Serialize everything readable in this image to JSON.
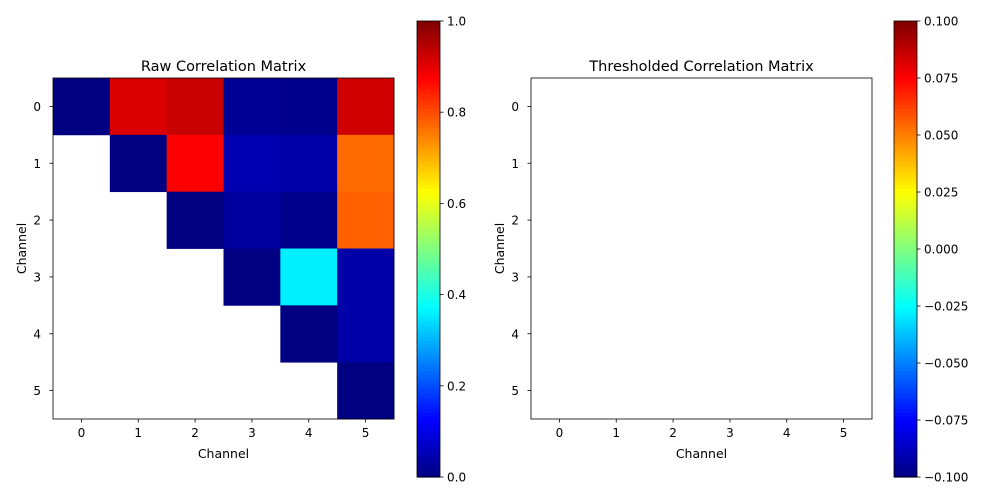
{
  "chart_data": [
    {
      "type": "heatmap",
      "title": "Raw Correlation Matrix",
      "xlabel": "Channel",
      "ylabel": "Channel",
      "x_categories": [
        "0",
        "1",
        "2",
        "3",
        "4",
        "5"
      ],
      "y_categories": [
        "0",
        "1",
        "2",
        "3",
        "4",
        "5"
      ],
      "colormap": "jet",
      "clim": [
        0,
        1
      ],
      "colorbar_ticks": [
        "0.0",
        "0.2",
        "0.4",
        "0.6",
        "0.8",
        "1.0"
      ],
      "colorbar_tick_values": [
        0,
        0.2,
        0.4,
        0.6,
        0.8,
        1.0
      ],
      "values": [
        [
          0.0,
          0.91,
          0.93,
          0.02,
          0.01,
          0.92
        ],
        [
          null,
          0.0,
          0.88,
          0.05,
          0.04,
          0.77
        ],
        [
          null,
          null,
          0.0,
          0.03,
          0.01,
          0.78
        ],
        [
          null,
          null,
          null,
          0.0,
          0.36,
          0.04
        ],
        [
          null,
          null,
          null,
          null,
          0.0,
          0.04
        ],
        [
          null,
          null,
          null,
          null,
          null,
          0.0
        ]
      ]
    },
    {
      "type": "heatmap",
      "title": "Thresholded Correlation Matrix",
      "xlabel": "Channel",
      "ylabel": "Channel",
      "x_categories": [
        "0",
        "1",
        "2",
        "3",
        "4",
        "5"
      ],
      "y_categories": [
        "0",
        "1",
        "2",
        "3",
        "4",
        "5"
      ],
      "colormap": "jet",
      "clim": [
        -0.1,
        0.1
      ],
      "colorbar_ticks": [
        "−0.100",
        "−0.075",
        "−0.050",
        "−0.025",
        "0.000",
        "0.025",
        "0.050",
        "0.075",
        "0.100"
      ],
      "colorbar_tick_values": [
        -0.1,
        -0.075,
        -0.05,
        -0.025,
        0,
        0.025,
        0.05,
        0.075,
        0.1
      ],
      "values": [
        [
          null,
          null,
          null,
          null,
          null,
          null
        ],
        [
          null,
          null,
          null,
          null,
          null,
          null
        ],
        [
          null,
          null,
          null,
          null,
          null,
          null
        ],
        [
          null,
          null,
          null,
          null,
          null,
          null
        ],
        [
          null,
          null,
          null,
          null,
          null,
          null
        ],
        [
          null,
          null,
          null,
          null,
          null,
          null
        ]
      ]
    }
  ]
}
